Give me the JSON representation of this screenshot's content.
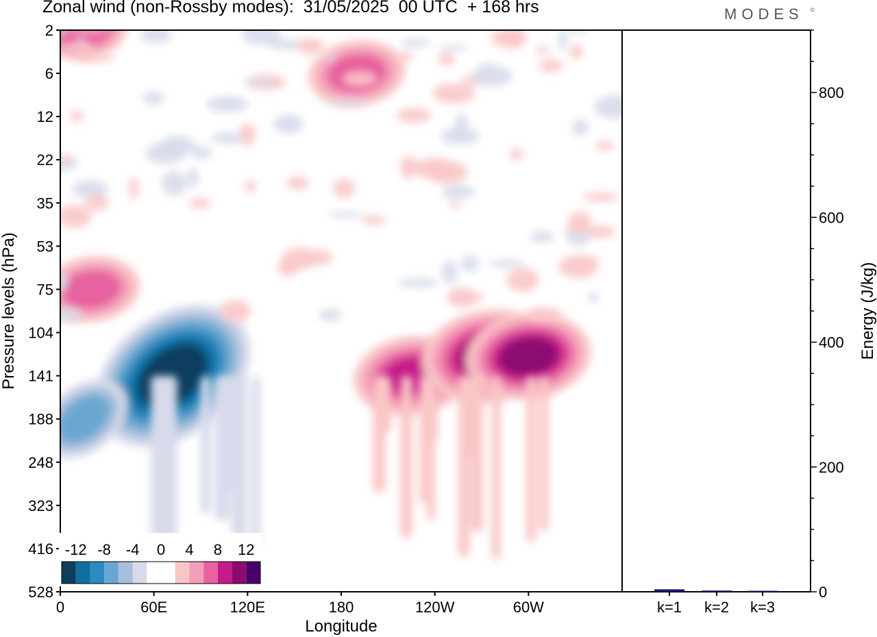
{
  "header": {
    "title": "Zonal wind (non-Rossby modes):  31/05/2025  00 UTC  + 168 hrs",
    "brand": "MODES",
    "brand_mark": "©"
  },
  "chart_data": [
    {
      "type": "heatmap",
      "title": "Zonal wind (non-Rossby modes):  31/05/2025  00 UTC  + 168 hrs",
      "xlabel": "Longitude",
      "ylabel": "Pressure levels (hPa)",
      "x_ticks": [
        {
          "label": "0",
          "lon": 0
        },
        {
          "label": "60E",
          "lon": 60
        },
        {
          "label": "120E",
          "lon": 120
        },
        {
          "label": "180",
          "lon": 180
        },
        {
          "label": "120W",
          "lon": 240
        },
        {
          "label": "60W",
          "lon": 300
        }
      ],
      "xlim": [
        0,
        360
      ],
      "y_levels": [
        2,
        6,
        12,
        22,
        35,
        53,
        75,
        104,
        141,
        188,
        248,
        323,
        416,
        528
      ],
      "colorbar": {
        "tick_labels": [
          "-12",
          "-8",
          "-4",
          "0",
          "4",
          "8",
          "12"
        ],
        "tick_values": [
          -12,
          -8,
          -4,
          0,
          4,
          8,
          12
        ],
        "levels": [
          -14,
          -12,
          -10,
          -8,
          -6,
          -4,
          -2,
          0,
          2,
          4,
          6,
          8,
          10,
          12,
          14
        ],
        "colors": [
          "#0e3d5e",
          "#0f6ea0",
          "#2d8ac0",
          "#6aa7d0",
          "#a6bfdc",
          "#d7daea",
          "#ffffff",
          "#ffffff",
          "#f9c6c6",
          "#f49fba",
          "#e8629f",
          "#c51b8a",
          "#8c0b6f",
          "#4a0069"
        ]
      },
      "features": [
        {
          "lon": 72,
          "level": 141,
          "value": -14,
          "note": "strong negative core near 60E-80E, 104-188 hPa"
        },
        {
          "lon": 15,
          "level": 188,
          "value": -6
        },
        {
          "lon": 20,
          "level": 75,
          "value": 6
        },
        {
          "lon": 225,
          "level": 141,
          "value": 8
        },
        {
          "lon": 275,
          "level": 123,
          "value": 10
        },
        {
          "lon": 300,
          "level": 123,
          "value": 9
        },
        {
          "lon": 190,
          "level": 6,
          "value": 6
        },
        {
          "lon": 15,
          "level": 2,
          "value": 5
        }
      ]
    },
    {
      "type": "bar",
      "categories": [
        "k=1",
        "k=2",
        "k=3"
      ],
      "values": [
        4,
        2,
        1
      ],
      "ylabel": "Energy (J/kg)",
      "ylim": [
        0,
        900
      ],
      "y_ticks": [
        0,
        200,
        400,
        600,
        800
      ],
      "color": "#1a1a6e"
    }
  ]
}
